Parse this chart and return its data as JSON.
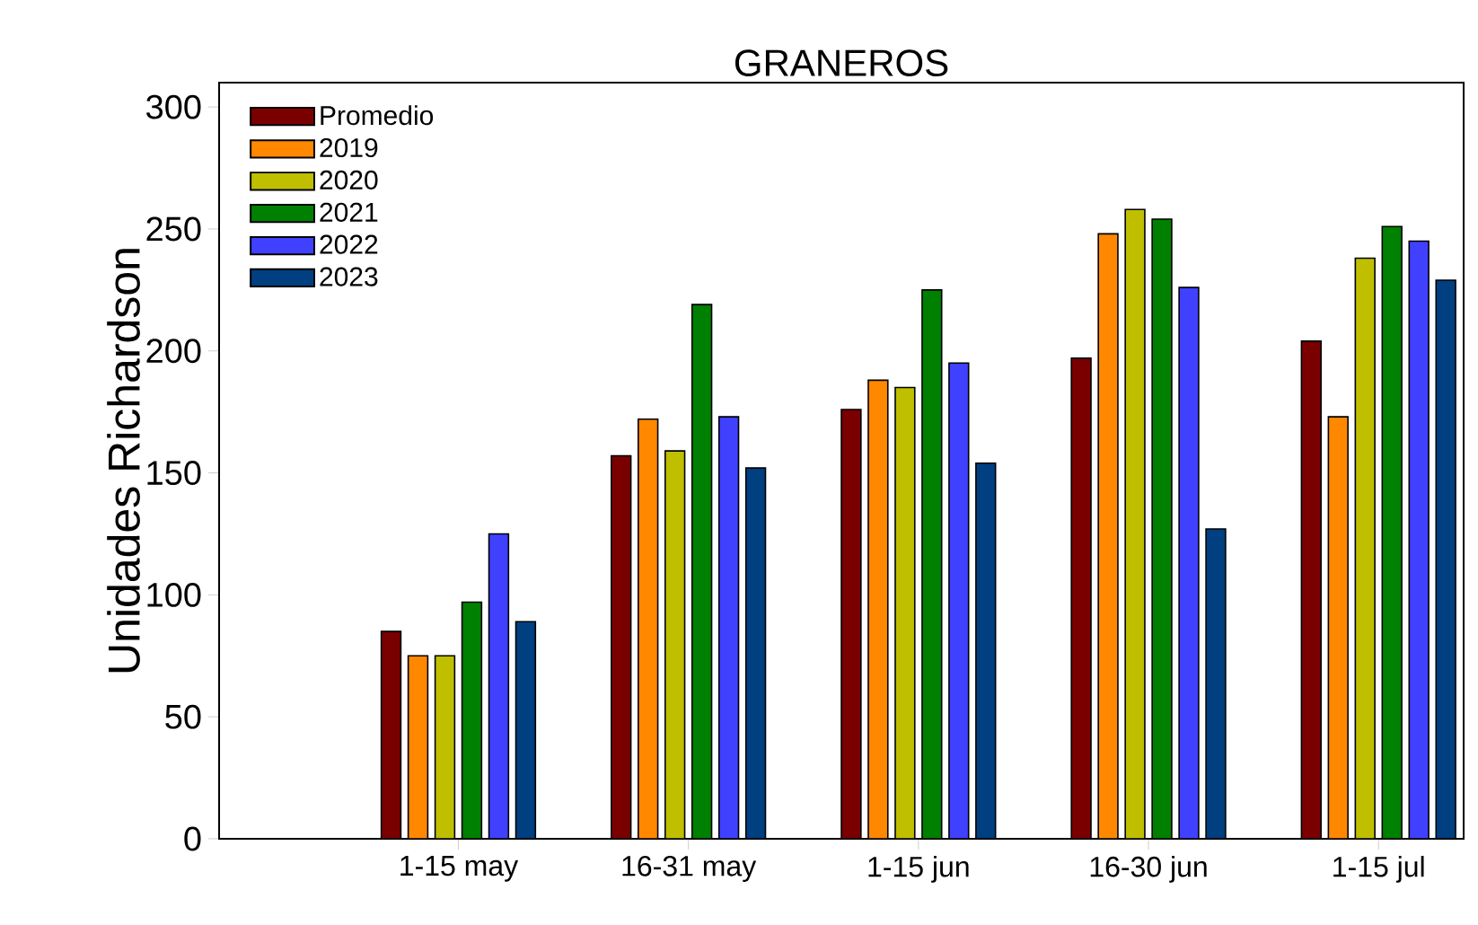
{
  "chart_data": {
    "type": "bar",
    "title": "GRANEROS",
    "ylabel": "Unidades Richardson",
    "categories": [
      "1-15 may",
      "16-31 may",
      "1-15 jun",
      "16-30 jun",
      "1-15 jul"
    ],
    "series": [
      {
        "name": "Promedio",
        "color": "#7a0000",
        "values": [
          85,
          157,
          176,
          197,
          204
        ]
      },
      {
        "name": "2019",
        "color": "#ff8800",
        "values": [
          75,
          172,
          188,
          248,
          173
        ]
      },
      {
        "name": "2020",
        "color": "#bfbf00",
        "values": [
          75,
          159,
          185,
          258,
          238
        ]
      },
      {
        "name": "2021",
        "color": "#008000",
        "values": [
          97,
          219,
          225,
          254,
          251
        ]
      },
      {
        "name": "2022",
        "color": "#4040ff",
        "values": [
          125,
          173,
          195,
          226,
          245
        ]
      },
      {
        "name": "2023",
        "color": "#003f80",
        "values": [
          89,
          152,
          154,
          127,
          229
        ]
      }
    ],
    "ylim": [
      0,
      310
    ],
    "yticks": [
      0,
      50,
      100,
      150,
      200,
      250,
      300
    ],
    "legend": "top left"
  }
}
